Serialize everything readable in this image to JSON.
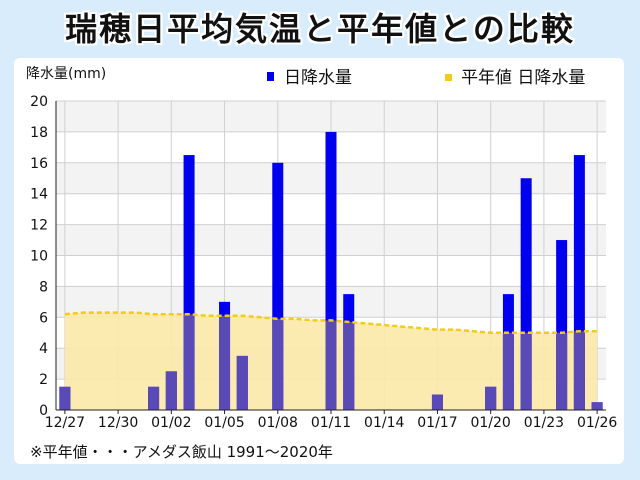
{
  "title": "瑞穂日平均気温と平年値との比較",
  "note": "※平年値・・・アメダス飯山 1991〜2020年",
  "chart_data": {
    "type": "bar",
    "ylabel": "降水量(mm)",
    "ylim": [
      0,
      20
    ],
    "yticks": [
      0,
      2,
      4,
      6,
      8,
      10,
      12,
      14,
      16,
      18,
      20
    ],
    "grid": true,
    "legend_position": "top",
    "categories": [
      "12/27",
      "12/28",
      "12/29",
      "12/30",
      "12/31",
      "01/01",
      "01/02",
      "01/03",
      "01/04",
      "01/05",
      "01/06",
      "01/07",
      "01/08",
      "01/09",
      "01/10",
      "01/11",
      "01/12",
      "01/13",
      "01/14",
      "01/15",
      "01/16",
      "01/17",
      "01/18",
      "01/19",
      "01/20",
      "01/21",
      "01/22",
      "01/23",
      "01/24",
      "01/25",
      "01/26"
    ],
    "tick_labels": [
      "12/27",
      "12/30",
      "01/02",
      "01/05",
      "01/08",
      "01/11",
      "01/14",
      "01/17",
      "01/20",
      "01/23",
      "01/26"
    ],
    "series": [
      {
        "name": "日降水量",
        "kind": "bar",
        "color": "#0000ee",
        "values": [
          1.5,
          0,
          0,
          0,
          0,
          1.5,
          2.5,
          16.5,
          0,
          7,
          3.5,
          0,
          16,
          0,
          0,
          18,
          7.5,
          0,
          0,
          0,
          0,
          1,
          0,
          0,
          1.5,
          7.5,
          15,
          0,
          11,
          16.5,
          0.5
        ]
      },
      {
        "name": "平年値 日降水量",
        "kind": "area",
        "color": "#f2cc1a",
        "fill": "#fbe9a8",
        "values": [
          6.2,
          6.3,
          6.3,
          6.3,
          6.3,
          6.2,
          6.2,
          6.2,
          6.1,
          6.1,
          6.1,
          6.0,
          5.9,
          5.9,
          5.8,
          5.8,
          5.7,
          5.6,
          5.5,
          5.4,
          5.3,
          5.2,
          5.2,
          5.1,
          5.0,
          5.0,
          5.0,
          5.0,
          5.0,
          5.1,
          5.1
        ]
      }
    ]
  }
}
